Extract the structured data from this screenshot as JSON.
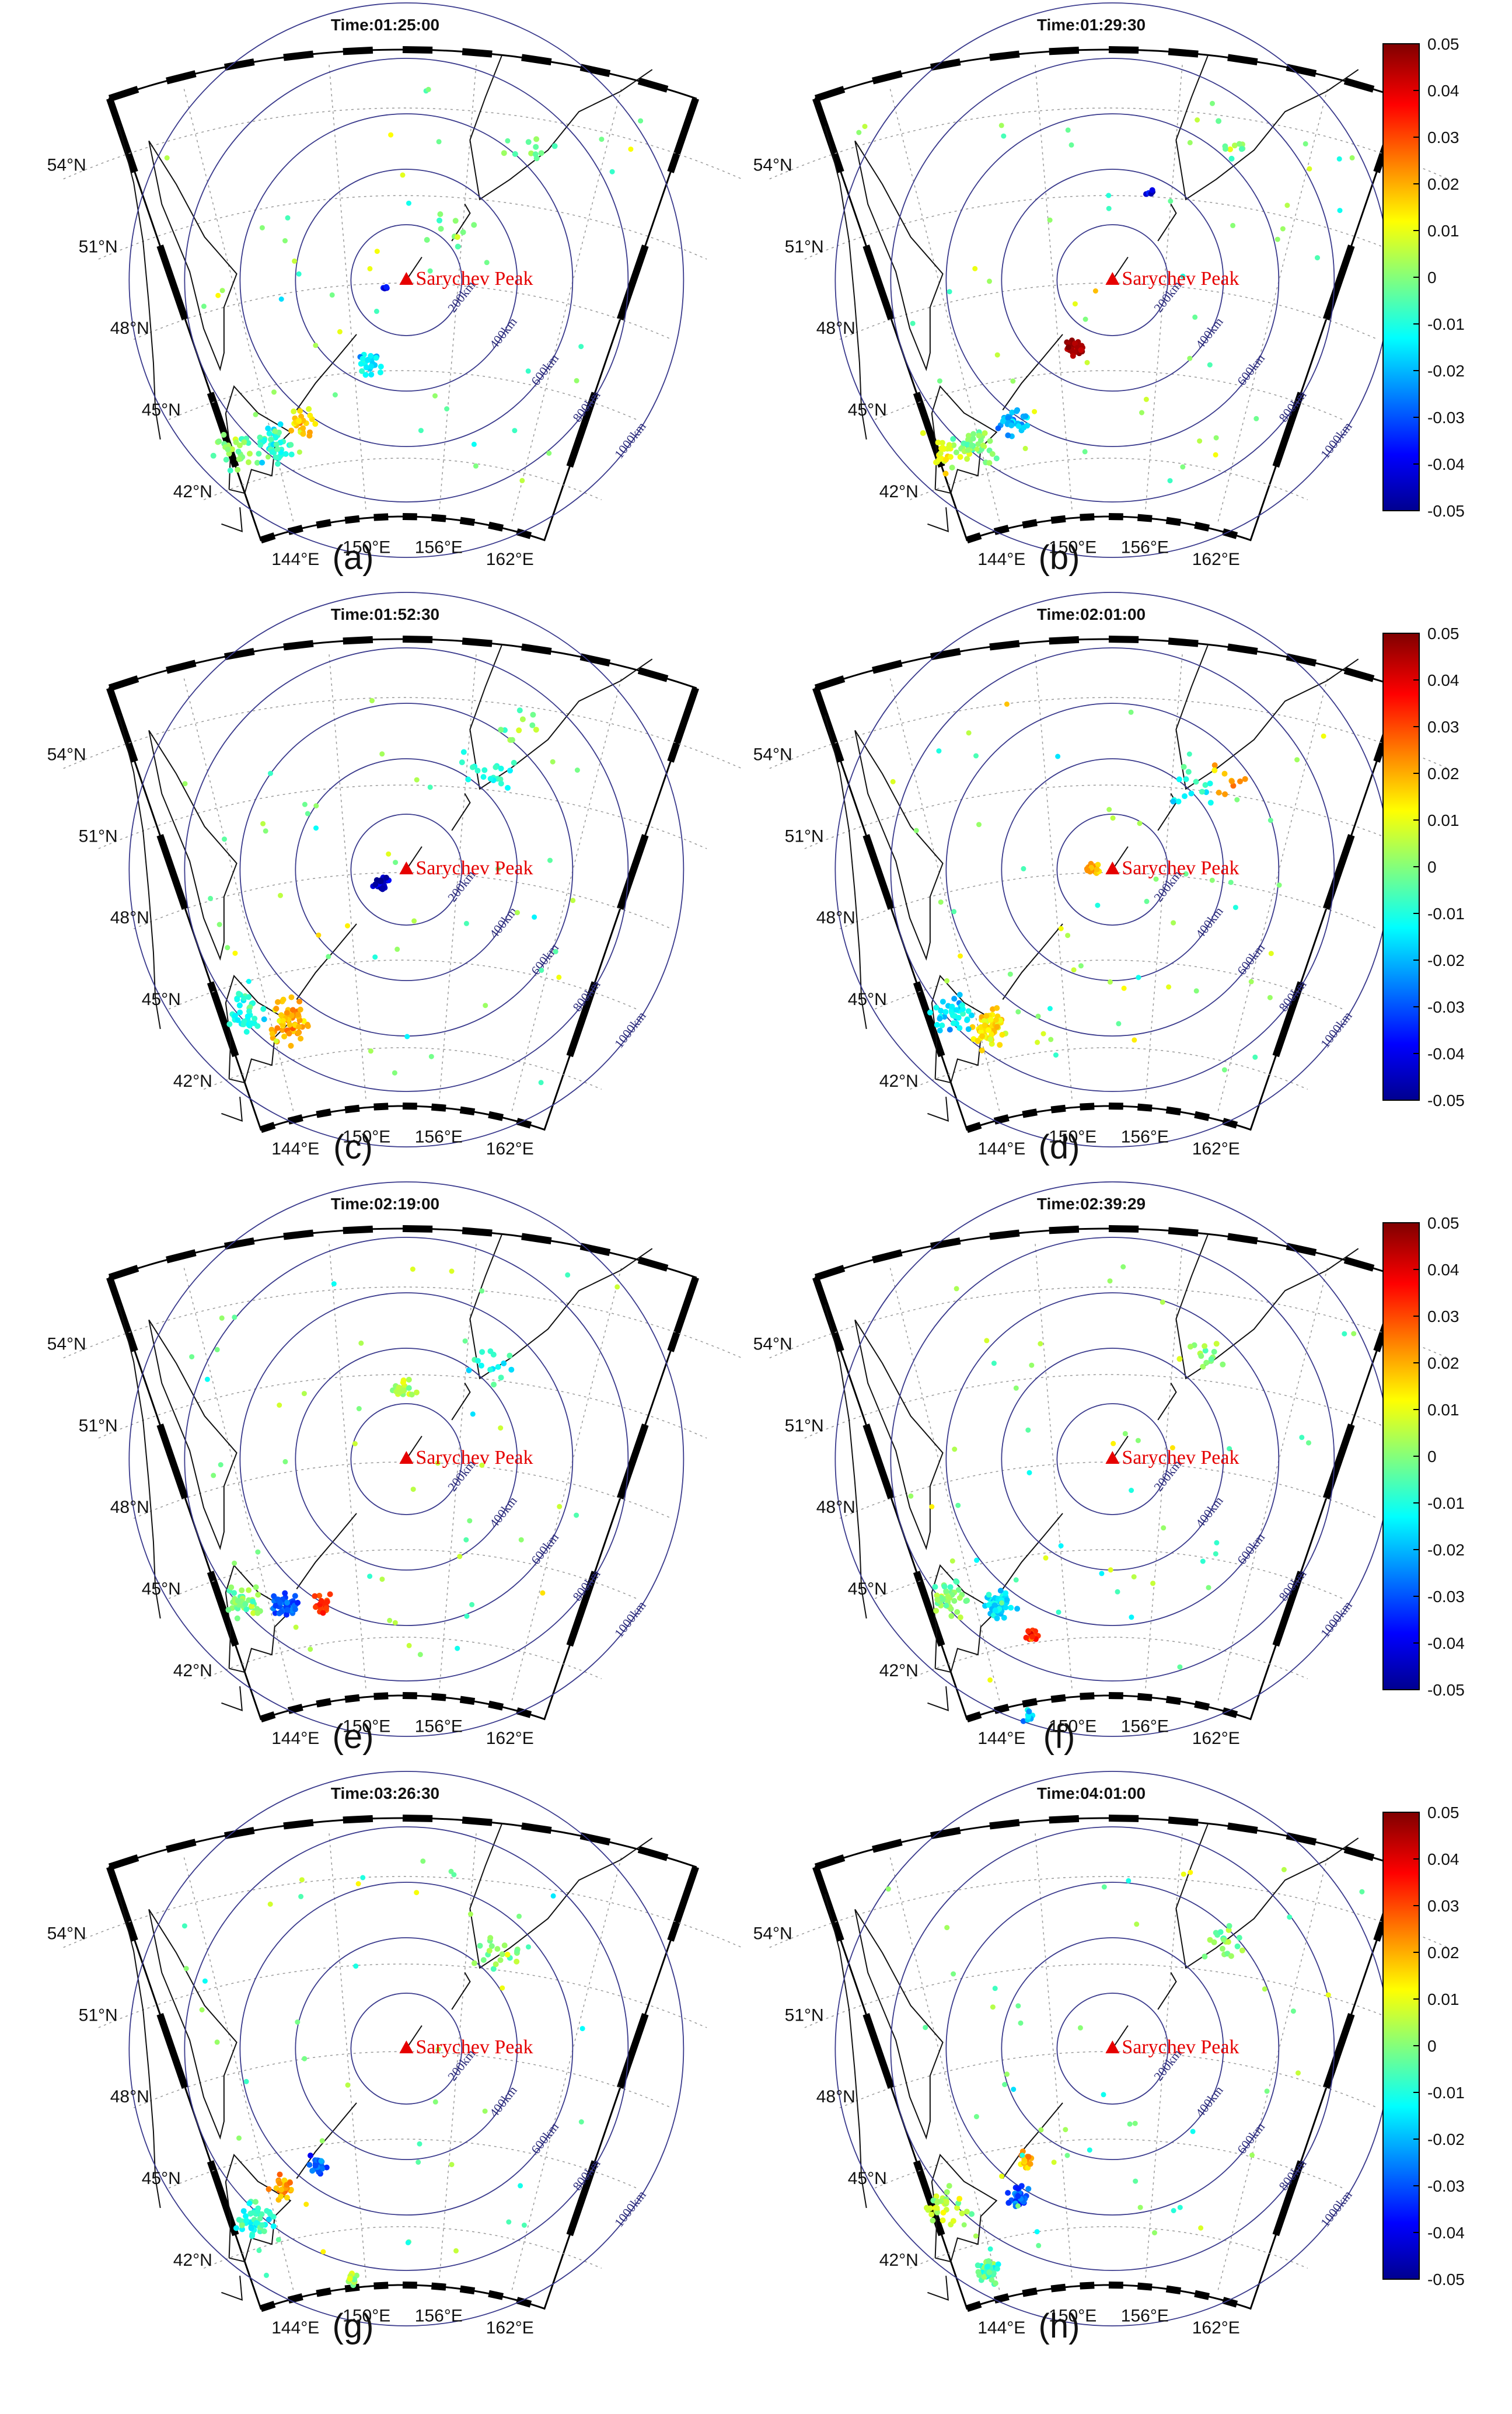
{
  "volcano": "Sarychev Peak",
  "lat_labels": [
    "54°N",
    "51°N",
    "48°N",
    "45°N",
    "42°N"
  ],
  "lon_labels": [
    "144°E",
    "150°E",
    "156°E",
    "162°E"
  ],
  "ring_labels": [
    "200km",
    "400km",
    "600km",
    "800km",
    "1000km"
  ],
  "colorbar": {
    "ticks": [
      "0.05",
      "0.04",
      "0.03",
      "0.02",
      "0.01",
      "0",
      "-0.01",
      "-0.02",
      "-0.03",
      "-0.04",
      "-0.05"
    ],
    "range": [
      -0.05,
      0.05
    ],
    "colormap": [
      "#00008f",
      "#0000ff",
      "#00ffff",
      "#ffff00",
      "#ff0000",
      "#800000"
    ]
  },
  "chart_data": [
    {
      "type": "scatter",
      "label": "(a)",
      "title": "Time:01:25:00",
      "clusters": [
        {
          "lon": 151.0,
          "lat": 45.3,
          "value": -0.015,
          "count": 25,
          "spread": 1.1
        },
        {
          "lon": 146.3,
          "lat": 43.5,
          "value": 0.015,
          "count": 25,
          "spread": 1.1
        },
        {
          "lon": 144.0,
          "lat": 43.0,
          "value": -0.01,
          "count": 45,
          "spread": 1.6
        },
        {
          "lon": 141.5,
          "lat": 43.2,
          "value": 0.0,
          "count": 30,
          "spread": 1.6
        },
        {
          "lon": 155.5,
          "lat": 50.0,
          "value": 0.0,
          "count": 10,
          "spread": 1.5
        },
        {
          "lon": 159.0,
          "lat": 53.0,
          "value": -0.005,
          "count": 10,
          "spread": 1.5
        },
        {
          "lon": 152.0,
          "lat": 47.8,
          "value": -0.04,
          "count": 4,
          "spread": 0.3
        }
      ],
      "scatter_count": 45
    },
    {
      "type": "scatter",
      "label": "(b)",
      "title": "Time:01:29:30",
      "clusters": [
        {
          "lon": 151.0,
          "lat": 45.8,
          "value": 0.045,
          "count": 35,
          "spread": 0.7
        },
        {
          "lon": 146.5,
          "lat": 43.5,
          "value": -0.02,
          "count": 35,
          "spread": 1.2
        },
        {
          "lon": 143.5,
          "lat": 43.0,
          "value": 0.0,
          "count": 40,
          "spread": 1.5
        },
        {
          "lon": 141.5,
          "lat": 43.2,
          "value": 0.01,
          "count": 25,
          "spread": 1.5
        },
        {
          "lon": 155.0,
          "lat": 51.2,
          "value": -0.045,
          "count": 5,
          "spread": 0.3
        },
        {
          "lon": 158.5,
          "lat": 53.0,
          "value": 0.0,
          "count": 10,
          "spread": 1.5
        }
      ],
      "scatter_count": 50
    },
    {
      "type": "scatter",
      "label": "(c)",
      "title": "Time:01:52:30",
      "clusters": [
        {
          "lon": 151.8,
          "lat": 47.6,
          "value": -0.045,
          "count": 30,
          "spread": 0.6
        },
        {
          "lon": 145.3,
          "lat": 43.3,
          "value": 0.02,
          "count": 70,
          "spread": 1.6
        },
        {
          "lon": 142.5,
          "lat": 44.0,
          "value": -0.01,
          "count": 40,
          "spread": 1.6
        },
        {
          "lon": 157.0,
          "lat": 51.5,
          "value": -0.01,
          "count": 20,
          "spread": 1.5
        },
        {
          "lon": 158.5,
          "lat": 53.3,
          "value": 0.0,
          "count": 10,
          "spread": 1.5
        }
      ],
      "scatter_count": 45
    },
    {
      "type": "scatter",
      "label": "(d)",
      "title": "Time:02:01:00",
      "clusters": [
        {
          "lon": 152.3,
          "lat": 48.2,
          "value": 0.02,
          "count": 15,
          "spread": 0.6
        },
        {
          "lon": 144.5,
          "lat": 43.2,
          "value": 0.015,
          "count": 60,
          "spread": 1.5
        },
        {
          "lon": 142.5,
          "lat": 44.0,
          "value": -0.015,
          "count": 40,
          "spread": 1.5
        },
        {
          "lon": 158.5,
          "lat": 51.5,
          "value": 0.02,
          "count": 10,
          "spread": 1.2
        },
        {
          "lon": 157.0,
          "lat": 51.0,
          "value": -0.01,
          "count": 15,
          "spread": 1.5
        }
      ],
      "scatter_count": 55
    },
    {
      "type": "scatter",
      "label": "(e)",
      "title": "Time:02:19:00",
      "clusters": [
        {
          "lon": 145.0,
          "lat": 43.5,
          "value": -0.03,
          "count": 45,
          "spread": 1.0
        },
        {
          "lon": 147.5,
          "lat": 43.3,
          "value": 0.03,
          "count": 20,
          "spread": 0.8
        },
        {
          "lon": 142.5,
          "lat": 44.0,
          "value": 0.0,
          "count": 40,
          "spread": 1.5
        },
        {
          "lon": 153.0,
          "lat": 50.5,
          "value": 0.005,
          "count": 20,
          "spread": 0.8
        },
        {
          "lon": 157.0,
          "lat": 51.5,
          "value": -0.01,
          "count": 15,
          "spread": 1.3
        }
      ],
      "scatter_count": 45
    },
    {
      "type": "scatter",
      "label": "(f)",
      "title": "Time:02:39:29",
      "clusters": [
        {
          "lon": 145.5,
          "lat": 43.5,
          "value": -0.015,
          "count": 55,
          "spread": 1.2
        },
        {
          "lon": 147.5,
          "lat": 42.3,
          "value": 0.03,
          "count": 15,
          "spread": 0.6
        },
        {
          "lon": 142.5,
          "lat": 44.0,
          "value": 0.0,
          "count": 40,
          "spread": 1.5
        },
        {
          "lon": 157.5,
          "lat": 52.0,
          "value": 0.0,
          "count": 15,
          "spread": 1.3
        },
        {
          "lon": 146.0,
          "lat": 39.6,
          "value": -0.02,
          "count": 8,
          "spread": 0.6
        }
      ],
      "scatter_count": 45
    },
    {
      "type": "scatter",
      "label": "(g)",
      "title": "Time:03:26:30",
      "clusters": [
        {
          "lon": 147.5,
          "lat": 44.3,
          "value": -0.03,
          "count": 20,
          "spread": 0.7
        },
        {
          "lon": 145.0,
          "lat": 43.8,
          "value": 0.02,
          "count": 25,
          "spread": 1.0
        },
        {
          "lon": 142.5,
          "lat": 43.0,
          "value": -0.01,
          "count": 50,
          "spread": 1.6
        },
        {
          "lon": 149.0,
          "lat": 40.3,
          "value": 0.005,
          "count": 15,
          "spread": 0.6
        },
        {
          "lon": 157.5,
          "lat": 51.5,
          "value": 0.0,
          "count": 20,
          "spread": 1.4
        }
      ],
      "scatter_count": 45
    },
    {
      "type": "scatter",
      "label": "(h)",
      "title": "Time:04:01:00",
      "clusters": [
        {
          "lon": 146.8,
          "lat": 43.3,
          "value": -0.03,
          "count": 30,
          "spread": 0.9
        },
        {
          "lon": 147.5,
          "lat": 44.5,
          "value": 0.02,
          "count": 15,
          "spread": 0.7
        },
        {
          "lon": 143.5,
          "lat": 41.0,
          "value": -0.005,
          "count": 45,
          "spread": 1.0
        },
        {
          "lon": 142.0,
          "lat": 43.5,
          "value": 0.005,
          "count": 35,
          "spread": 1.5
        },
        {
          "lon": 158.5,
          "lat": 52.0,
          "value": 0.0,
          "count": 20,
          "spread": 1.4
        }
      ],
      "scatter_count": 50
    }
  ]
}
